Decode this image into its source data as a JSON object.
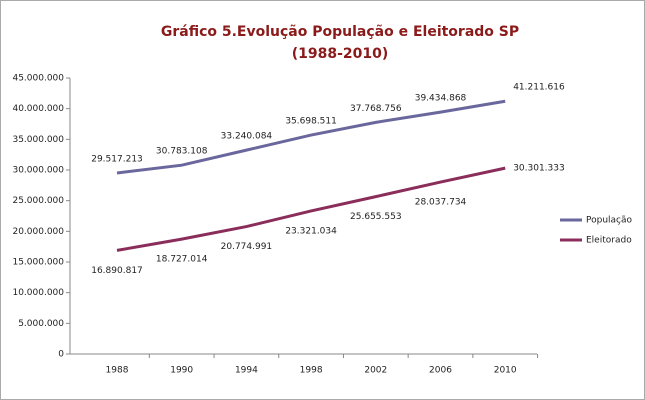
{
  "chart_data": {
    "type": "line",
    "title": "Gráfico 5.Evolução População e Eleitorado SP",
    "subtitle": "(1988-2010)",
    "categories": [
      "1988",
      "1990",
      "1994",
      "1998",
      "2002",
      "2006",
      "2010"
    ],
    "series": [
      {
        "name": "População",
        "color": "#6a679c",
        "values": [
          29517213,
          30783108,
          33240084,
          35698511,
          37768756,
          39434868,
          41211616
        ],
        "value_labels": [
          "29.517.213",
          "30.783.108",
          "33.240.084",
          "35.698.511",
          "37.768.756",
          "39.434.868",
          "41.211.616"
        ]
      },
      {
        "name": "Eleitorado",
        "color": "#8b2d5a",
        "values": [
          16890817,
          18727014,
          20774991,
          23321034,
          25655553,
          28037734,
          30301333
        ],
        "value_labels": [
          "16.890.817",
          "18.727.014",
          "20.774.991",
          "23.321.034",
          "25.655.553",
          "28.037.734",
          "30.301.333"
        ]
      }
    ],
    "ylim": [
      0,
      45000000
    ],
    "yticks": [
      0,
      {
        "value": 5000000,
        "label": "5.000.000"
      },
      {
        "value": 10000000,
        "label": "10.000.000"
      },
      {
        "value": 15000000,
        "label": "15.000.000"
      },
      {
        "value": 20000000,
        "label": "20.000.000"
      },
      {
        "value": 25000000,
        "label": "25.000.000"
      },
      {
        "value": 30000000,
        "label": "30.000.000"
      },
      {
        "value": 35000000,
        "label": "35.000.000"
      },
      {
        "value": 40000000,
        "label": "40.000.000"
      },
      {
        "value": 45000000,
        "label": "45.000.000"
      }
    ],
    "grid": false,
    "legend": "right"
  }
}
